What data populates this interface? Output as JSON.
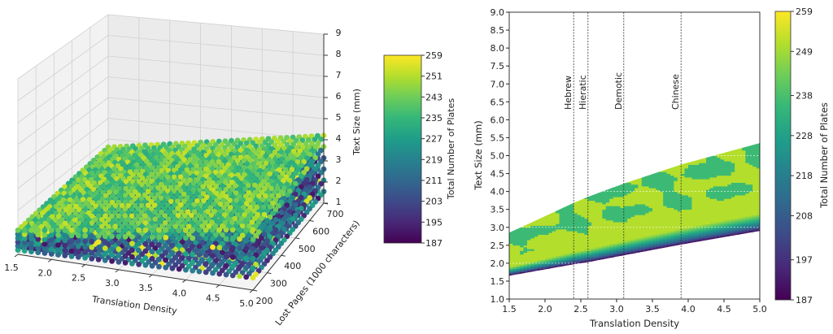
{
  "chart_data": [
    {
      "type": "scatter",
      "projection": "3d",
      "xlabel": "Translation Density",
      "ylabel": "Lost Pages (1000 characters)",
      "zlabel": "Text Size (mm)",
      "xlim": [
        1.5,
        5.0
      ],
      "ylim": [
        200,
        700
      ],
      "zlim": [
        1,
        9
      ],
      "xticks": [
        "1.5",
        "2.0",
        "2.5",
        "3.0",
        "3.5",
        "4.0",
        "4.5",
        "5.0"
      ],
      "yticks": [
        "200",
        "300",
        "400",
        "500",
        "600",
        "700"
      ],
      "zticks": [
        "1",
        "2",
        "3",
        "4",
        "5",
        "6",
        "7",
        "8",
        "9"
      ],
      "grid": true,
      "colormap": "viridis",
      "colorbar": {
        "label": "Total Number of Plates",
        "range": [
          187,
          259
        ],
        "ticks": [
          "259",
          "251",
          "243",
          "235",
          "227",
          "219",
          "211",
          "203",
          "195",
          "187"
        ]
      }
    },
    {
      "type": "heatmap",
      "xlabel": "Translation Density",
      "ylabel": "Text Size (mm)",
      "xlim": [
        1.5,
        5.0
      ],
      "ylim": [
        1.0,
        9.0
      ],
      "xticks": [
        "1.5",
        "2.0",
        "2.5",
        "3.0",
        "3.5",
        "4.0",
        "4.5",
        "5.0"
      ],
      "yticks": [
        "1.0",
        "1.5",
        "2.0",
        "2.5",
        "3.0",
        "3.5",
        "4.0",
        "4.5",
        "5.0",
        "5.5",
        "6.0",
        "6.5",
        "7.0",
        "7.5",
        "8.0",
        "8.5",
        "9.0"
      ],
      "region_boundary": {
        "x": [
          1.5,
          2.4,
          2.6,
          3.1,
          3.9,
          5.0
        ],
        "upper": [
          2.85,
          3.68,
          3.85,
          4.22,
          4.75,
          5.35
        ],
        "lower": [
          1.65,
          1.97,
          2.03,
          2.22,
          2.52,
          2.9
        ]
      },
      "vlines": [
        {
          "label": "Hebrew",
          "x": 2.4
        },
        {
          "label": "Hieratic",
          "x": 2.6
        },
        {
          "label": "Demotic",
          "x": 3.1
        },
        {
          "label": "Chinese",
          "x": 3.9
        }
      ],
      "colormap": "viridis",
      "colorbar": {
        "label": "Total Number of Plates",
        "range": [
          187,
          259
        ],
        "ticks": [
          "259",
          "249",
          "238",
          "228",
          "218",
          "208",
          "197",
          "187"
        ]
      }
    }
  ]
}
